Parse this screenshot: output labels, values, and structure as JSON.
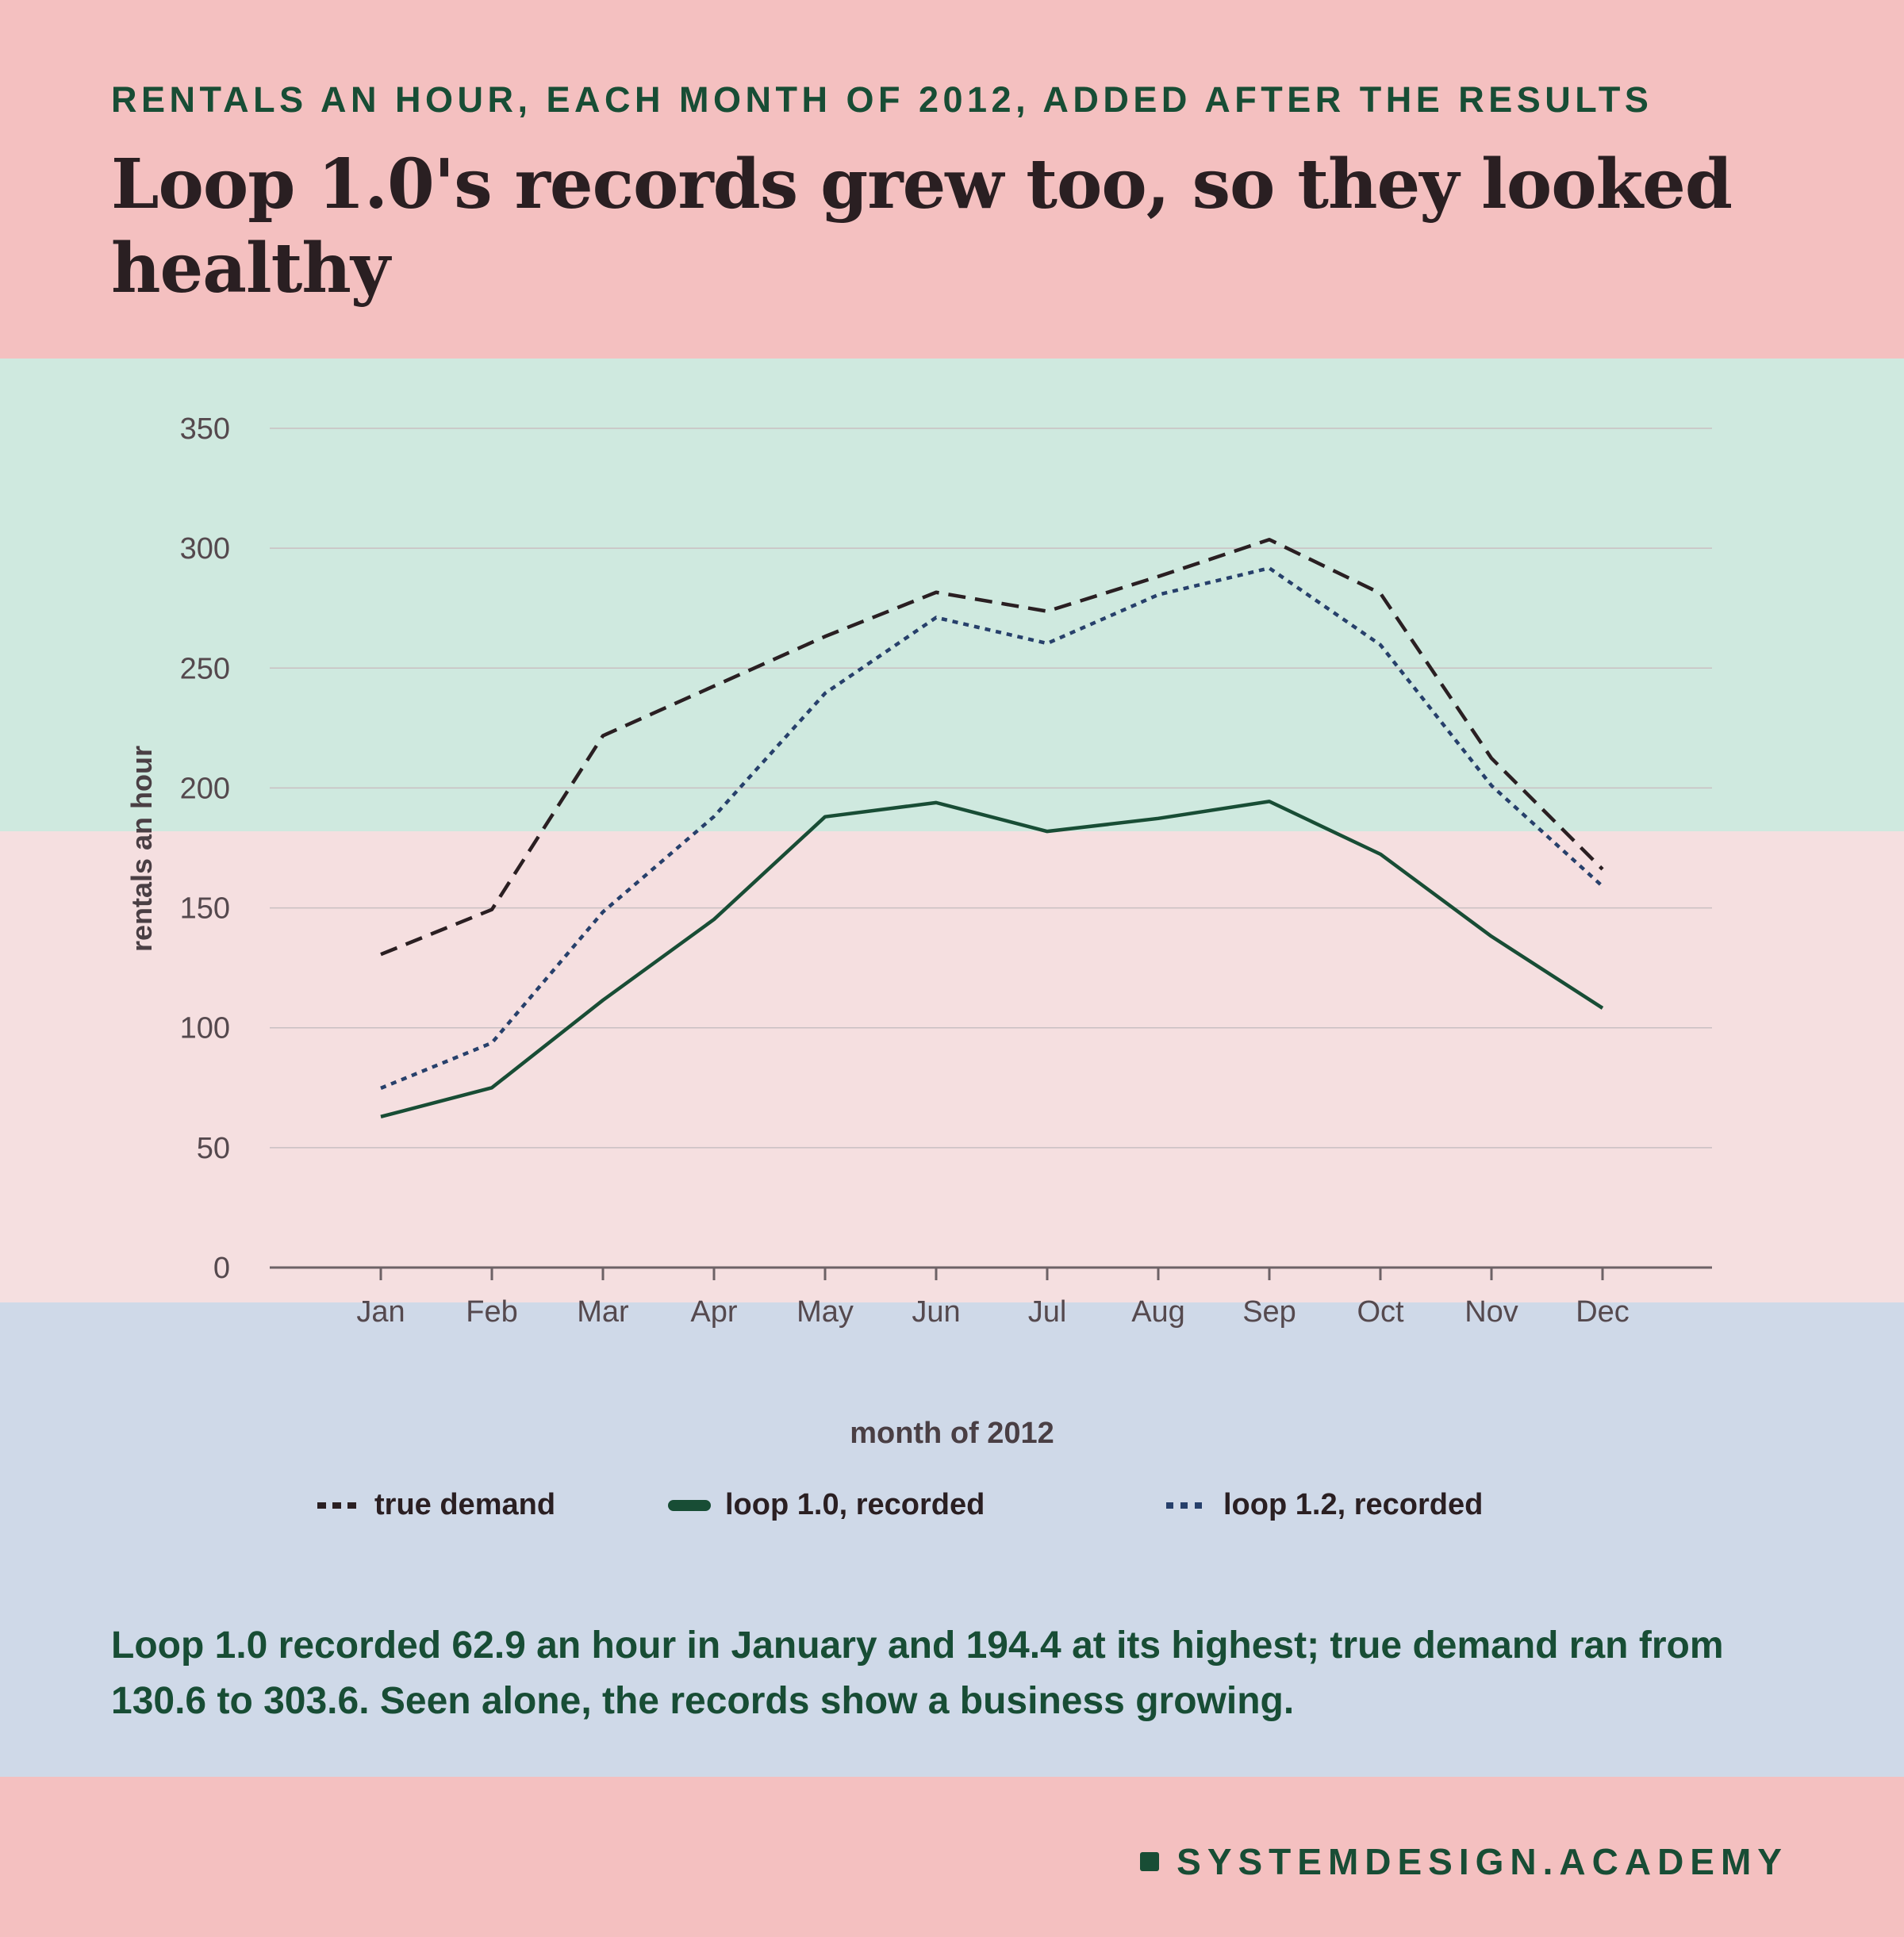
{
  "kicker": "RENTALS AN HOUR, EACH MONTH OF 2012, ADDED AFTER THE RESULTS",
  "headline": "Loop 1.0's records grew too, so they looked healthy",
  "summary": "Loop 1.0 recorded 62.9 an hour in January and 194.4 at its highest; true demand ran from 130.6 to 303.6. Seen alone, the records show a business growing.",
  "brand": "SYSTEMDESIGN.ACADEMY",
  "colors": {
    "true_demand": "#2a1f22",
    "loop_1_0": "#184d35",
    "loop_1_2": "#27406b",
    "grid": "#c9bfc2",
    "axis": "#6d6266",
    "tick_label": "#55494e"
  },
  "chart_data": {
    "type": "line",
    "categories": [
      "Jan",
      "Feb",
      "Mar",
      "Apr",
      "May",
      "Jun",
      "Jul",
      "Aug",
      "Sep",
      "Oct",
      "Nov",
      "Dec"
    ],
    "xlabel": "month of 2012",
    "ylabel": "rentals an hour",
    "ylim": [
      0,
      350
    ],
    "yticks": [
      0,
      50,
      100,
      150,
      200,
      250,
      300,
      350
    ],
    "grid": true,
    "legend_position": "bottom",
    "series": [
      {
        "name": "true demand",
        "style": "dashed",
        "values": [
          130.6,
          149.3,
          221.8,
          242.5,
          263.2,
          281.6,
          273.7,
          288.2,
          303.6,
          281.2,
          212.4,
          166.1
        ]
      },
      {
        "name": "loop 1.0, recorded",
        "style": "solid",
        "values": [
          62.9,
          75.0,
          111.5,
          145.2,
          188.0,
          193.9,
          181.9,
          187.3,
          194.4,
          172.4,
          138.1,
          108.2
        ]
      },
      {
        "name": "loop 1.2, recorded",
        "style": "dotted",
        "values": [
          74.8,
          93.7,
          148.3,
          188.1,
          239.5,
          271.1,
          260.3,
          280.6,
          291.7,
          259.7,
          201.0,
          159.0
        ]
      }
    ]
  }
}
